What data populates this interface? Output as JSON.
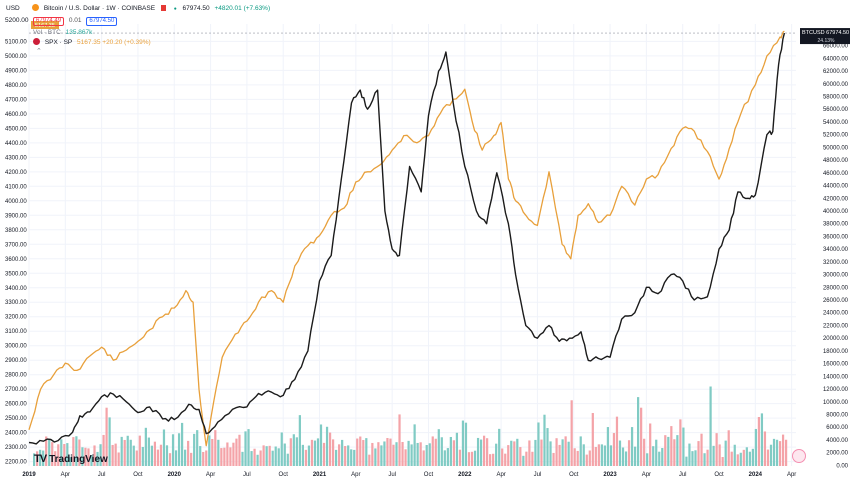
{
  "header": {
    "currency": "USD",
    "series_title": "Bitcoin / U.S. Dollar · 1W · COINBASE",
    "price_open": "67974.49",
    "spread": "0.01",
    "price_close": "67974.50",
    "last_price": "67974.50",
    "change": "+4820.01 (+7.63%)",
    "spx_axis_top": "5200.00",
    "btc_legend_label": "Vol · BTC",
    "btc_legend_value": "135.867k",
    "spx_legend_label": "SPX · SP",
    "spx_legend_value": "5167.35 +20.20 (+0.39%)",
    "badge_spx": "5167.35",
    "badge_btc_symbol": "BTCUSD",
    "badge_btc_value": "67974.50",
    "badge_btc_sub": "24.13%",
    "logo_text": "TradingView",
    "colors": {
      "btc": "#f7931a",
      "spx": "#cc1f39",
      "btc_line": "#e8a03b",
      "black_line": "#1b1b1b",
      "vol_up": "#80cbc4",
      "vol_down": "#f4a3a8"
    }
  },
  "chart_data": {
    "type": "line",
    "x_ticks": [
      "2019",
      "Apr",
      "Jul",
      "Oct",
      "2020",
      "Apr",
      "Jul",
      "Oct",
      "2021",
      "Apr",
      "Jul",
      "Oct",
      "2022",
      "Apr",
      "Jul",
      "Oct",
      "2023",
      "Apr",
      "Jul",
      "Oct",
      "2024",
      "Apr"
    ],
    "left_axis": {
      "ticks": [
        "5100.00",
        "5000.00",
        "4900.00",
        "4800.00",
        "4700.00",
        "4600.00",
        "4500.00",
        "4400.00",
        "4300.00",
        "4200.00",
        "4100.00",
        "4000.00",
        "3900.00",
        "3800.00",
        "3700.00",
        "3600.00",
        "3500.00",
        "3400.00",
        "3300.00",
        "3200.00",
        "3100.00",
        "3000.00",
        "2900.00",
        "2800.00",
        "2700.00",
        "2600.00",
        "2500.00",
        "2400.00",
        "2300.00",
        "2200.00"
      ],
      "range": [
        2170,
        5220
      ]
    },
    "right_axis": {
      "ticks": [
        "66000.00",
        "64000.00",
        "62000.00",
        "60000.00",
        "58000.00",
        "56000.00",
        "54000.00",
        "52000.00",
        "50000.00",
        "48000.00",
        "46000.00",
        "44000.00",
        "42000.00",
        "40000.00",
        "38000.00",
        "36000.00",
        "34000.00",
        "32000.00",
        "30000.00",
        "28000.00",
        "26000.00",
        "24000.00",
        "22000.00",
        "20000.00",
        "18000.00",
        "16000.00",
        "14000.00",
        "12000.00",
        "10000.00",
        "8000.00",
        "6000.00",
        "4000.00",
        "2000.00",
        "0.00"
      ],
      "range": [
        -100,
        69400
      ]
    },
    "series": [
      {
        "name": "SPX",
        "axis": "left",
        "x": [
          2019.0,
          2019.08,
          2019.17,
          2019.25,
          2019.33,
          2019.42,
          2019.5,
          2019.58,
          2019.67,
          2019.75,
          2019.83,
          2019.92,
          2020.0,
          2020.08,
          2020.13,
          2020.17,
          2020.22,
          2020.25,
          2020.33,
          2020.42,
          2020.5,
          2020.58,
          2020.67,
          2020.75,
          2020.83,
          2020.92,
          2021.0,
          2021.08,
          2021.17,
          2021.25,
          2021.33,
          2021.42,
          2021.5,
          2021.58,
          2021.67,
          2021.75,
          2021.83,
          2021.92,
          2022.0,
          2022.05,
          2022.12,
          2022.2,
          2022.25,
          2022.3,
          2022.35,
          2022.42,
          2022.5,
          2022.58,
          2022.67,
          2022.73,
          2022.78,
          2022.85,
          2022.92,
          2023.0,
          2023.08,
          2023.17,
          2023.25,
          2023.33,
          2023.42,
          2023.5,
          2023.58,
          2023.67,
          2023.75,
          2023.82,
          2023.9,
          2024.0,
          2024.08,
          2024.17,
          2024.2
        ],
        "y": [
          2420,
          2700,
          2800,
          2880,
          2830,
          2930,
          2990,
          2900,
          2970,
          3030,
          3110,
          3200,
          3260,
          3380,
          3300,
          2700,
          2310,
          2490,
          2920,
          3080,
          3170,
          3300,
          3380,
          3300,
          3550,
          3690,
          3760,
          3900,
          3950,
          4130,
          4200,
          4250,
          4350,
          4450,
          4400,
          4450,
          4600,
          4700,
          4770,
          4550,
          4350,
          4450,
          4540,
          4150,
          4000,
          3900,
          3830,
          4200,
          3700,
          3600,
          3900,
          3980,
          3850,
          3900,
          4100,
          3970,
          4150,
          4180,
          4360,
          4500,
          4480,
          4340,
          4150,
          4360,
          4600,
          4800,
          5000,
          5130,
          5170
        ]
      },
      {
        "name": "BTCUSD",
        "axis": "right",
        "x": [
          2019.0,
          2019.1,
          2019.2,
          2019.3,
          2019.35,
          2019.42,
          2019.5,
          2019.58,
          2019.67,
          2019.75,
          2019.83,
          2019.92,
          2020.0,
          2020.1,
          2020.17,
          2020.22,
          2020.3,
          2020.4,
          2020.5,
          2020.58,
          2020.67,
          2020.75,
          2020.83,
          2020.92,
          2021.0,
          2021.08,
          2021.15,
          2021.22,
          2021.28,
          2021.33,
          2021.4,
          2021.45,
          2021.5,
          2021.55,
          2021.62,
          2021.7,
          2021.75,
          2021.82,
          2021.87,
          2021.92,
          2022.0,
          2022.08,
          2022.15,
          2022.22,
          2022.3,
          2022.35,
          2022.42,
          2022.5,
          2022.58,
          2022.65,
          2022.72,
          2022.8,
          2022.85,
          2022.92,
          2023.0,
          2023.08,
          2023.17,
          2023.25,
          2023.33,
          2023.42,
          2023.5,
          2023.58,
          2023.67,
          2023.75,
          2023.82,
          2023.88,
          2023.95,
          2024.0,
          2024.08,
          2024.12,
          2024.16,
          2024.2
        ],
        "y": [
          3600,
          3800,
          3900,
          5200,
          7800,
          8400,
          10800,
          11200,
          10000,
          8300,
          9200,
          7300,
          7200,
          9600,
          8800,
          5000,
          6800,
          8800,
          9200,
          11300,
          11500,
          11000,
          13500,
          18000,
          29000,
          33000,
          45000,
          57000,
          59000,
          56000,
          59000,
          40000,
          34000,
          33000,
          47000,
          43000,
          55000,
          62000,
          65000,
          57000,
          47000,
          40000,
          38000,
          46000,
          38000,
          30000,
          22000,
          20000,
          22000,
          19500,
          20000,
          21000,
          16500,
          16800,
          17000,
          23000,
          24000,
          28000,
          27000,
          30000,
          29000,
          26000,
          26500,
          34000,
          37000,
          43000,
          42000,
          42500,
          52000,
          52500,
          63000,
          67974
        ]
      }
    ],
    "volume": {
      "bars_up": [
        0.12,
        0.2,
        0.16,
        0.22,
        0.26,
        0.3,
        0.2,
        0.14,
        0.18,
        0.24,
        0.28,
        0.16,
        0.12,
        0.2,
        0.3,
        0.22,
        0.24,
        0.18,
        0.16,
        0.14,
        0.22,
        0.2,
        0.26,
        0.3,
        0.34,
        0.38,
        0.28,
        0.22,
        0.2,
        0.24,
        0.18,
        0.3,
        0.26,
        0.2,
        0.18,
        0.24,
        0.22,
        0.28,
        0.2,
        0.16,
        0.22,
        0.18,
        0.26,
        0.3,
        0.24,
        0.2,
        0.28,
        0.22,
        0.32,
        0.38,
        0.22,
        0.18,
        0.2,
        0.26,
        0.3,
        0.24,
        0.18,
        0.22,
        0.28,
        0.2,
        0.34,
        0.3,
        0.26,
        0.22,
        0.18,
        0.24,
        0.2,
        0.28,
        0.3,
        0.22,
        0.34,
        0.4
      ]
    }
  }
}
